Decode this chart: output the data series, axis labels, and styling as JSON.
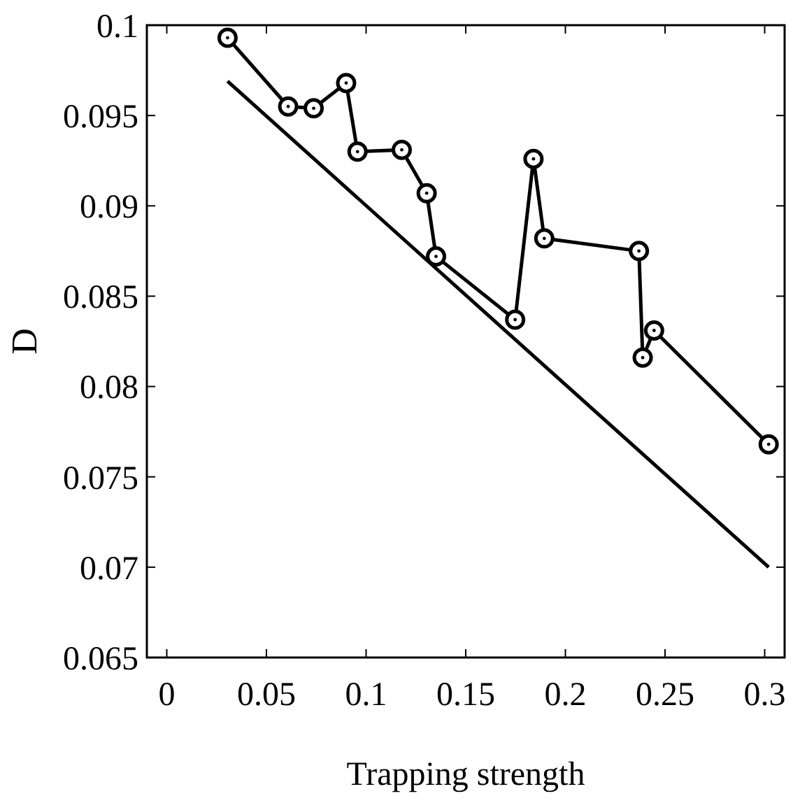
{
  "chart_data": {
    "type": "line",
    "xlabel": "Trapping strength",
    "ylabel": "D",
    "xlim": [
      -0.01,
      0.31
    ],
    "xticks": [
      0,
      0.05,
      0.1,
      0.15,
      0.2,
      0.25,
      0.3
    ],
    "ylim": [
      0.065,
      0.1
    ],
    "yticks": [
      0.065,
      0.07,
      0.075,
      0.08,
      0.085,
      0.09,
      0.095,
      0.1
    ],
    "series": [
      {
        "color": "#000000",
        "marker": "circle",
        "x": [
          0.0305,
          0.0609,
          0.0737,
          0.09,
          0.0957,
          0.1179,
          0.1304,
          0.1351,
          0.1748,
          0.184,
          0.1894,
          0.2369,
          0.2388,
          0.2445,
          0.302
        ],
        "values": [
          0.0993,
          0.0955,
          0.0954,
          0.0968,
          0.093,
          0.0931,
          0.0907,
          0.0872,
          0.0837,
          0.0926,
          0.0882,
          0.0875,
          0.0816,
          0.0831,
          0.0768
        ]
      },
      {
        "color": "#000000",
        "marker": "none",
        "x": [
          0.0305,
          0.302
        ],
        "values": [
          0.0969,
          0.07
        ]
      }
    ]
  }
}
